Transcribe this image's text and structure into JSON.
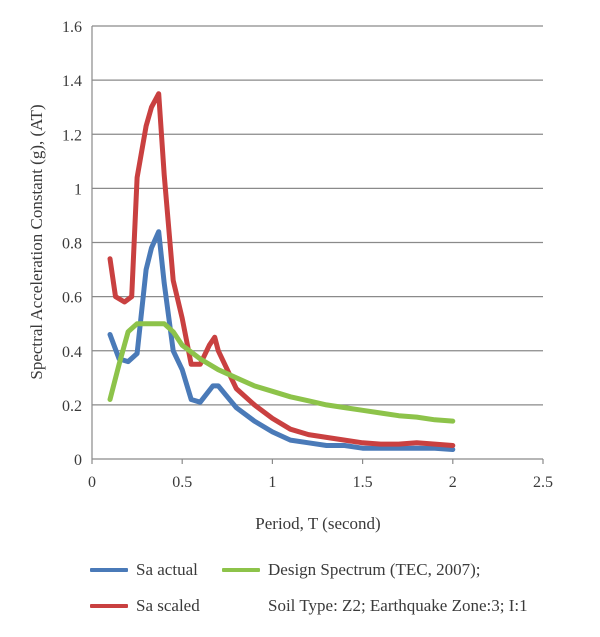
{
  "chart_data": {
    "type": "line",
    "xlabel": "Period, T (second)",
    "ylabel": "Spectral Acceleration Constant (g), (AT)",
    "xlim": [
      0,
      2.5
    ],
    "ylim": [
      0,
      1.6
    ],
    "xticks": [
      0,
      0.5,
      1,
      1.5,
      2,
      2.5
    ],
    "xtick_labels": [
      "0",
      "0.5",
      "1",
      "1.5",
      "2",
      "2.5"
    ],
    "yticks": [
      0,
      0.2,
      0.4,
      0.6,
      0.8,
      1.0,
      1.2,
      1.4,
      1.6
    ],
    "ytick_labels": [
      "0",
      "0.2",
      "0.4",
      "0.6",
      "0.8",
      "1",
      "1.2",
      "1.4",
      "1.6"
    ],
    "grid": "horizontal",
    "legend_position": "bottom",
    "series": [
      {
        "name": "Sa actual",
        "color": "#4a7ab8",
        "x": [
          0.1,
          0.15,
          0.2,
          0.25,
          0.3,
          0.33,
          0.37,
          0.4,
          0.45,
          0.5,
          0.55,
          0.6,
          0.67,
          0.7,
          0.75,
          0.8,
          0.9,
          1.0,
          1.1,
          1.2,
          1.3,
          1.4,
          1.5,
          1.6,
          1.7,
          1.8,
          1.9,
          2.0
        ],
        "y": [
          0.46,
          0.37,
          0.36,
          0.39,
          0.7,
          0.78,
          0.84,
          0.65,
          0.4,
          0.33,
          0.22,
          0.21,
          0.27,
          0.27,
          0.23,
          0.19,
          0.14,
          0.1,
          0.07,
          0.06,
          0.05,
          0.05,
          0.04,
          0.04,
          0.04,
          0.04,
          0.04,
          0.035
        ]
      },
      {
        "name": "Sa scaled",
        "color": "#c94040",
        "x": [
          0.1,
          0.13,
          0.18,
          0.22,
          0.25,
          0.3,
          0.33,
          0.37,
          0.4,
          0.45,
          0.5,
          0.55,
          0.6,
          0.65,
          0.68,
          0.7,
          0.75,
          0.8,
          0.9,
          1.0,
          1.1,
          1.2,
          1.3,
          1.4,
          1.5,
          1.6,
          1.7,
          1.8,
          1.9,
          2.0
        ],
        "y": [
          0.74,
          0.6,
          0.58,
          0.6,
          1.04,
          1.23,
          1.3,
          1.35,
          1.05,
          0.66,
          0.52,
          0.35,
          0.35,
          0.42,
          0.45,
          0.4,
          0.33,
          0.26,
          0.2,
          0.15,
          0.11,
          0.09,
          0.08,
          0.07,
          0.06,
          0.055,
          0.055,
          0.06,
          0.055,
          0.05
        ]
      },
      {
        "name": "Design Spectrum (TEC, 2007);",
        "color": "#8dc34a",
        "x": [
          0.1,
          0.15,
          0.2,
          0.25,
          0.3,
          0.35,
          0.4,
          0.45,
          0.5,
          0.6,
          0.7,
          0.8,
          0.9,
          1.0,
          1.1,
          1.2,
          1.3,
          1.4,
          1.5,
          1.6,
          1.7,
          1.8,
          1.9,
          2.0
        ],
        "y": [
          0.22,
          0.35,
          0.47,
          0.5,
          0.5,
          0.5,
          0.5,
          0.47,
          0.42,
          0.37,
          0.33,
          0.3,
          0.27,
          0.25,
          0.23,
          0.215,
          0.2,
          0.19,
          0.18,
          0.17,
          0.16,
          0.155,
          0.145,
          0.14
        ]
      }
    ]
  },
  "legend": {
    "sa_actual": "Sa actual",
    "sa_scaled": "Sa scaled",
    "design_spectrum": "Design Spectrum (TEC, 2007);",
    "design_note": "Soil Type: Z2; Earthquake Zone:3; I:1"
  }
}
